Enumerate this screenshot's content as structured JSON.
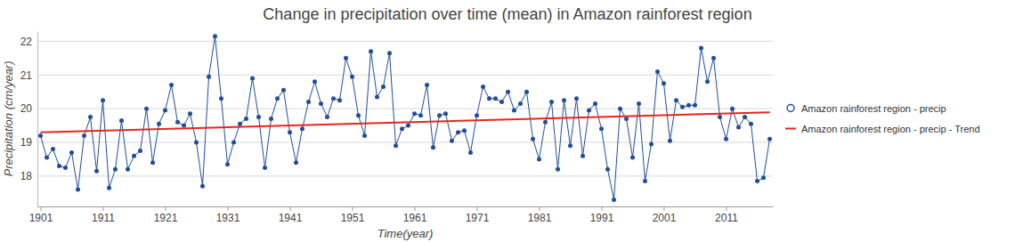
{
  "chart_data": {
    "type": "line",
    "title": "Change in precipitation over time (mean) in Amazon rainforest region",
    "x_label": "Time(year)",
    "y_label": "Precipitation (cm/year)",
    "x": [
      1901,
      1902,
      1903,
      1904,
      1905,
      1906,
      1907,
      1908,
      1909,
      1910,
      1911,
      1912,
      1913,
      1914,
      1915,
      1916,
      1917,
      1918,
      1919,
      1920,
      1921,
      1922,
      1923,
      1924,
      1925,
      1926,
      1927,
      1928,
      1929,
      1930,
      1931,
      1932,
      1933,
      1934,
      1935,
      1936,
      1937,
      1938,
      1939,
      1940,
      1941,
      1942,
      1943,
      1944,
      1945,
      1946,
      1947,
      1948,
      1949,
      1950,
      1951,
      1952,
      1953,
      1954,
      1955,
      1956,
      1957,
      1958,
      1959,
      1960,
      1961,
      1962,
      1963,
      1964,
      1965,
      1966,
      1967,
      1968,
      1969,
      1970,
      1971,
      1972,
      1973,
      1974,
      1975,
      1976,
      1977,
      1978,
      1979,
      1980,
      1981,
      1982,
      1983,
      1984,
      1985,
      1986,
      1987,
      1988,
      1989,
      1990,
      1991,
      1992,
      1993,
      1994,
      1995,
      1996,
      1997,
      1998,
      1999,
      2000,
      2001,
      2002,
      2003,
      2004,
      2005,
      2006,
      2007,
      2008,
      2009,
      2010,
      2011,
      2012,
      2013,
      2014,
      2015,
      2016,
      2017,
      2018
    ],
    "series": [
      {
        "name": "Amazon rainforest region - precip",
        "color": "#1f4e9c",
        "marker": "circle",
        "line_style": "solid",
        "values": [
          19.2,
          18.55,
          18.8,
          18.3,
          18.25,
          18.7,
          17.6,
          19.2,
          19.75,
          18.15,
          20.25,
          17.65,
          18.2,
          19.65,
          18.2,
          18.6,
          18.75,
          20.0,
          18.4,
          19.55,
          19.95,
          20.7,
          19.6,
          19.5,
          19.85,
          19.0,
          17.7,
          20.95,
          22.15,
          20.3,
          18.35,
          19.0,
          19.55,
          19.7,
          20.9,
          19.75,
          18.25,
          19.7,
          20.3,
          20.55,
          19.3,
          18.4,
          19.4,
          20.2,
          20.8,
          20.15,
          19.75,
          20.3,
          20.25,
          21.5,
          20.95,
          19.8,
          19.2,
          21.7,
          20.35,
          20.65,
          21.65,
          18.9,
          19.4,
          19.5,
          19.85,
          19.8,
          20.7,
          18.85,
          19.8,
          19.85,
          19.05,
          19.3,
          19.35,
          18.7,
          19.8,
          20.65,
          20.3,
          20.3,
          20.2,
          20.5,
          19.95,
          20.15,
          20.5,
          19.1,
          18.5,
          19.6,
          20.2,
          18.2,
          20.25,
          18.9,
          20.3,
          18.6,
          19.95,
          20.15,
          19.4,
          18.2,
          17.3,
          20.0,
          19.7,
          18.55,
          20.15,
          17.85,
          18.95,
          21.1,
          20.75,
          19.05,
          20.25,
          20.05,
          20.1,
          20.1,
          21.8,
          20.8,
          21.5,
          19.75,
          19.1,
          20.0,
          19.45,
          19.75,
          19.55,
          17.85,
          17.95,
          19.1
        ]
      },
      {
        "name": "Amazon rainforest region - precip - Trend",
        "color": "#e8251f",
        "marker": "none",
        "line_style": "solid",
        "x": [
          1901,
          2018
        ],
        "values": [
          19.3,
          19.89
        ]
      }
    ],
    "xlim": [
      1900.5,
      2018.5
    ],
    "xticks": [
      1901,
      1911,
      1921,
      1931,
      1941,
      1951,
      1961,
      1971,
      1981,
      1991,
      2001,
      2011
    ],
    "ylim": [
      17.1,
      22.3
    ],
    "yticks": [
      18,
      19,
      20,
      21,
      22
    ],
    "grid": true,
    "legend": "right"
  }
}
